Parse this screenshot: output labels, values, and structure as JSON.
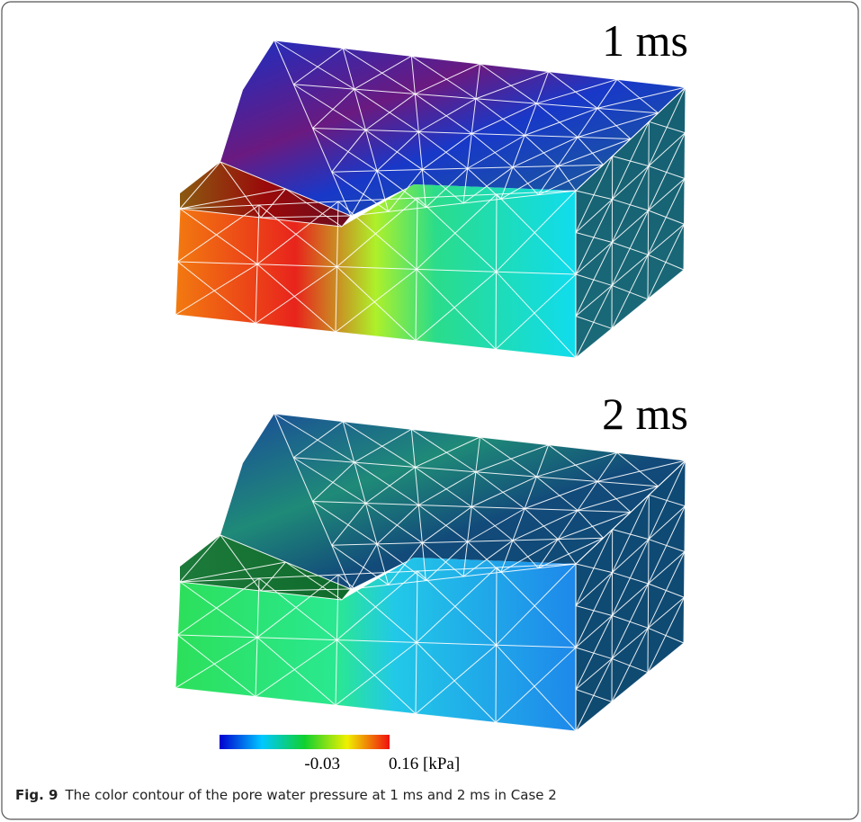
{
  "panels": [
    {
      "label": "1 ms"
    },
    {
      "label": "2 ms"
    }
  ],
  "colorbar": {
    "min_label": "-0.03",
    "max_label": "0.16 [kPa]"
  },
  "caption": {
    "label": "Fig. 9",
    "text": "The color contour of the pore water pressure at 1 ms and 2 ms in Case 2"
  }
}
